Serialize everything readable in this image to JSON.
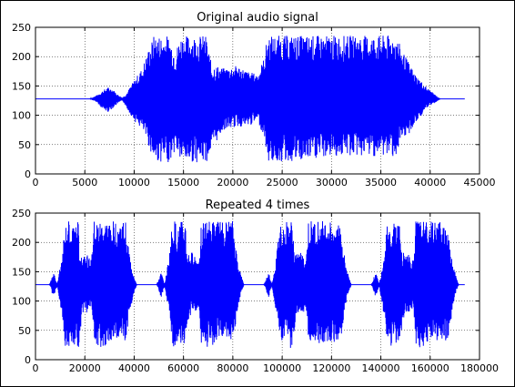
{
  "chart_data": [
    {
      "type": "line",
      "title": "Original audio signal",
      "xlabel": "",
      "ylabel": "",
      "xlim": [
        0,
        45000
      ],
      "ylim": [
        0,
        250
      ],
      "xticks": [
        0,
        5000,
        10000,
        15000,
        20000,
        25000,
        30000,
        35000,
        40000,
        45000
      ],
      "yticks": [
        0,
        50,
        100,
        150,
        200,
        250
      ],
      "grid": true,
      "color": "#0000ff",
      "baseline": 128,
      "signal_end": 43500,
      "envelope": [
        {
          "x": 0,
          "lo": 128,
          "hi": 128
        },
        {
          "x": 5500,
          "lo": 128,
          "hi": 128
        },
        {
          "x": 6200,
          "lo": 122,
          "hi": 134
        },
        {
          "x": 6800,
          "lo": 110,
          "hi": 142
        },
        {
          "x": 7300,
          "lo": 105,
          "hi": 148
        },
        {
          "x": 7800,
          "lo": 112,
          "hi": 145
        },
        {
          "x": 8300,
          "lo": 120,
          "hi": 136
        },
        {
          "x": 8800,
          "lo": 125,
          "hi": 130
        },
        {
          "x": 9300,
          "lo": 110,
          "hi": 140
        },
        {
          "x": 10000,
          "lo": 90,
          "hi": 160
        },
        {
          "x": 10800,
          "lo": 75,
          "hi": 180
        },
        {
          "x": 11400,
          "lo": 50,
          "hi": 210
        },
        {
          "x": 12000,
          "lo": 20,
          "hi": 236
        },
        {
          "x": 13500,
          "lo": 20,
          "hi": 236
        },
        {
          "x": 14200,
          "lo": 40,
          "hi": 210
        },
        {
          "x": 14700,
          "lo": 20,
          "hi": 236
        },
        {
          "x": 17300,
          "lo": 20,
          "hi": 236
        },
        {
          "x": 17800,
          "lo": 40,
          "hi": 190
        },
        {
          "x": 19000,
          "lo": 75,
          "hi": 180
        },
        {
          "x": 20500,
          "lo": 80,
          "hi": 185
        },
        {
          "x": 21500,
          "lo": 80,
          "hi": 175
        },
        {
          "x": 22500,
          "lo": 90,
          "hi": 170
        },
        {
          "x": 23200,
          "lo": 60,
          "hi": 200
        },
        {
          "x": 23500,
          "lo": 20,
          "hi": 236
        },
        {
          "x": 27000,
          "lo": 20,
          "hi": 236
        },
        {
          "x": 30000,
          "lo": 30,
          "hi": 236
        },
        {
          "x": 33000,
          "lo": 30,
          "hi": 236
        },
        {
          "x": 36500,
          "lo": 30,
          "hi": 236
        },
        {
          "x": 37500,
          "lo": 60,
          "hi": 200
        },
        {
          "x": 38500,
          "lo": 85,
          "hi": 170
        },
        {
          "x": 39500,
          "lo": 110,
          "hi": 150
        },
        {
          "x": 40500,
          "lo": 122,
          "hi": 135
        },
        {
          "x": 41000,
          "lo": 128,
          "hi": 128
        },
        {
          "x": 43500,
          "lo": 128,
          "hi": 128
        }
      ]
    },
    {
      "type": "line",
      "title": "Repeated 4 times",
      "xlabel": "",
      "ylabel": "",
      "xlim": [
        0,
        180000
      ],
      "ylim": [
        0,
        250
      ],
      "xticks": [
        0,
        20000,
        40000,
        60000,
        80000,
        100000,
        120000,
        140000,
        160000,
        180000
      ],
      "yticks": [
        0,
        50,
        100,
        150,
        200,
        250
      ],
      "grid": true,
      "color": "#0000ff",
      "baseline": 128,
      "repeat_count": 4,
      "period": 43500,
      "signal_end": 174000
    }
  ]
}
